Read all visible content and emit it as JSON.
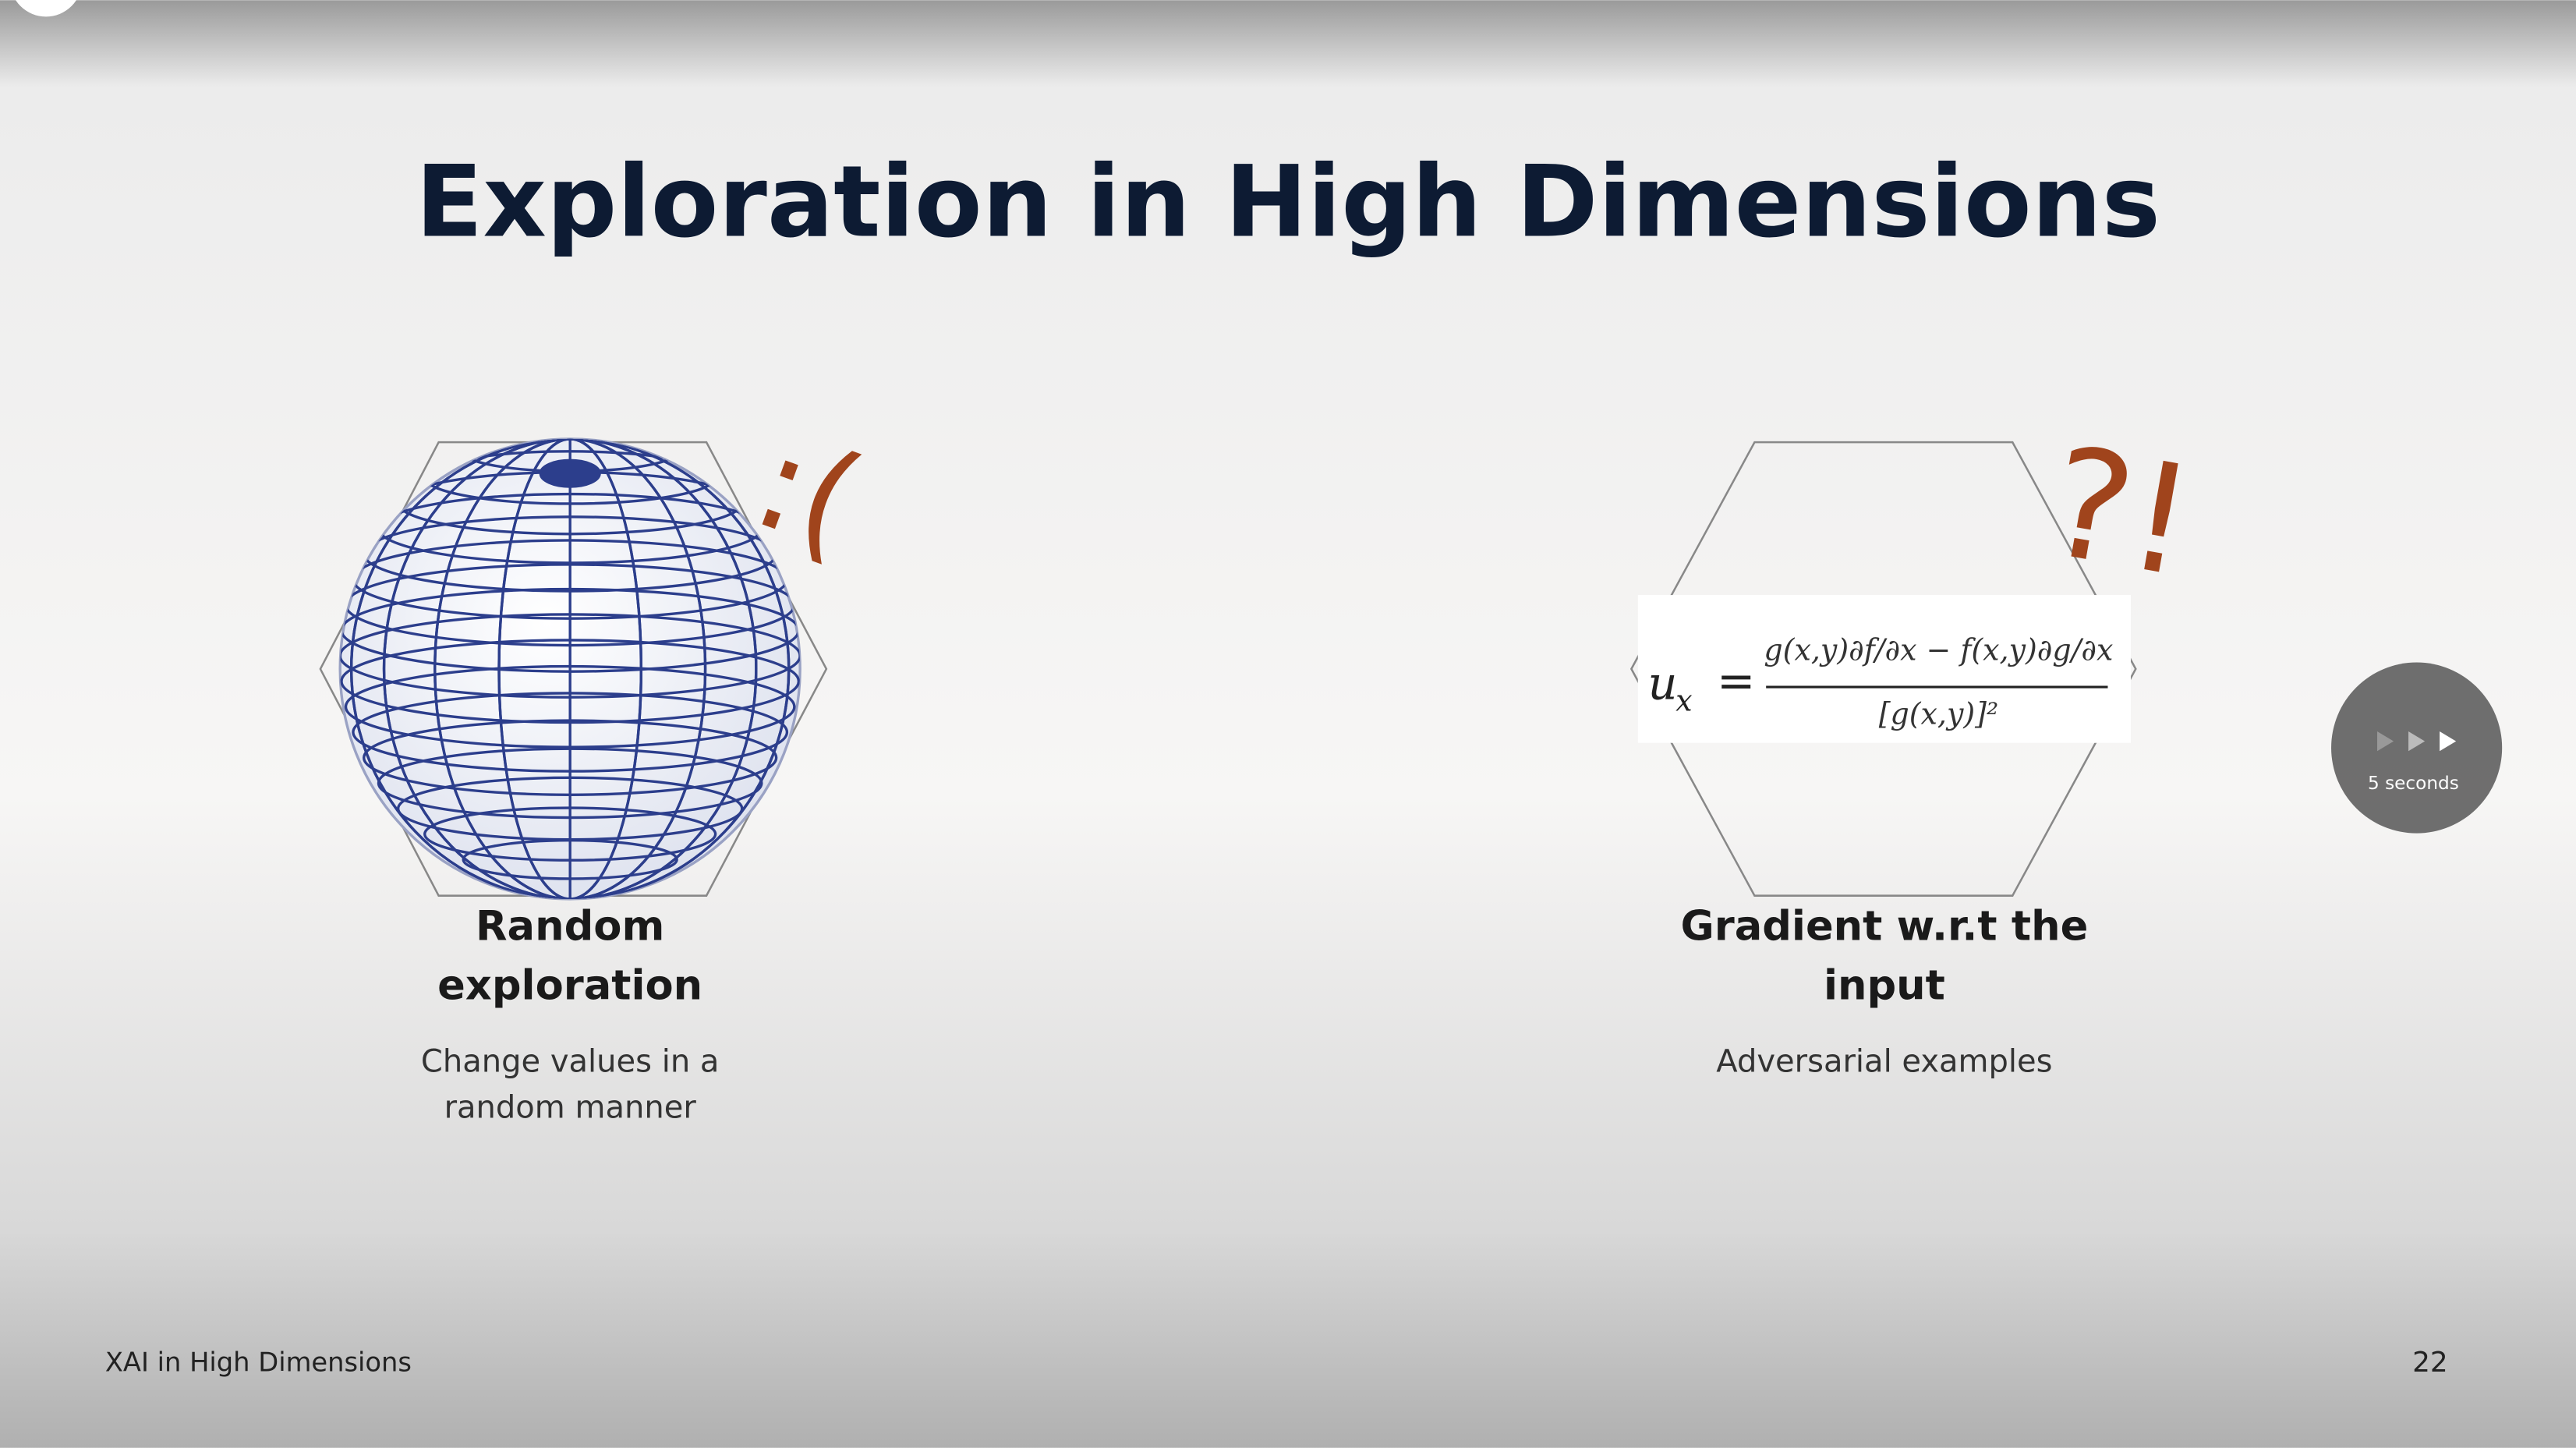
{
  "slide": {
    "title": "Exploration in High Dimensions",
    "cards": [
      {
        "title_lines": [
          "Random",
          "exploration"
        ],
        "subtitle_lines": [
          "Change values in a",
          "random manner"
        ],
        "emoticon": ":("
      },
      {
        "title_lines": [
          "Gradient w.r.t the",
          "input"
        ],
        "subtitle_lines": [
          "Adversarial examples"
        ],
        "emoticon": "?!",
        "formula": {
          "lhs": "u",
          "lhs_sub": "x",
          "equals": "=",
          "numerator": "g(x,y)∂f/∂x − f(x,y)∂g/∂x",
          "denominator": "[g(x,y)]²"
        }
      }
    ],
    "footer": "XAI in High Dimensions",
    "page_number": "22"
  },
  "player": {
    "skip_label": "5 seconds"
  }
}
